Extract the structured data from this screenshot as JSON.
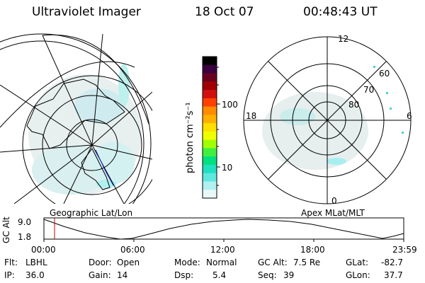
{
  "header": {
    "instrument": "Ultraviolet Imager",
    "date": "18 Oct 07",
    "time": "00:48:43 UT"
  },
  "colorbar": {
    "unit_label": "photon cm⁻²s⁻¹",
    "ticks": [
      "100",
      "10"
    ],
    "colors": [
      "#000000",
      "#3a0040",
      "#6a0020",
      "#a00000",
      "#d01010",
      "#ff4000",
      "#ff8c00",
      "#ffb000",
      "#ffe000",
      "#f0ff00",
      "#a0ff00",
      "#40f040",
      "#00e080",
      "#20e0c0",
      "#60e8e0",
      "#b0f0f0",
      "#e8f8f8"
    ]
  },
  "left_map": {
    "label": "Geographic Lat/Lon"
  },
  "right_map": {
    "label": "Apex MLat/MLT",
    "mlt_labels": {
      "top": "12",
      "left": "18",
      "right": "6",
      "bottom": "0"
    },
    "lat_labels": [
      "80",
      "70",
      "60"
    ]
  },
  "altitude_plot": {
    "ylabel": "GC Alt",
    "yticks": [
      "9.0",
      "1.8"
    ],
    "xticks": [
      "00:00",
      "06:00",
      "12:00",
      "18:00",
      "23:59"
    ],
    "marker_time": "00:48:43"
  },
  "status": {
    "flt": {
      "label": "Flt:",
      "value": "LBHL"
    },
    "ip": {
      "label": "IP:",
      "value": "36.0"
    },
    "door": {
      "label": "Door:",
      "value": "Open"
    },
    "gain": {
      "label": "Gain:",
      "value": "14"
    },
    "mode": {
      "label": "Mode:",
      "value": "Normal"
    },
    "dsp": {
      "label": "Dsp:",
      "value": "5.4"
    },
    "gcalt": {
      "label": "GC Alt:",
      "value": "7.5 Re"
    },
    "seq": {
      "label": "Seq:",
      "value": "39"
    },
    "glat": {
      "label": "GLat:",
      "value": "-82.7"
    },
    "glon": {
      "label": "GLon:",
      "value": "37.7"
    }
  }
}
